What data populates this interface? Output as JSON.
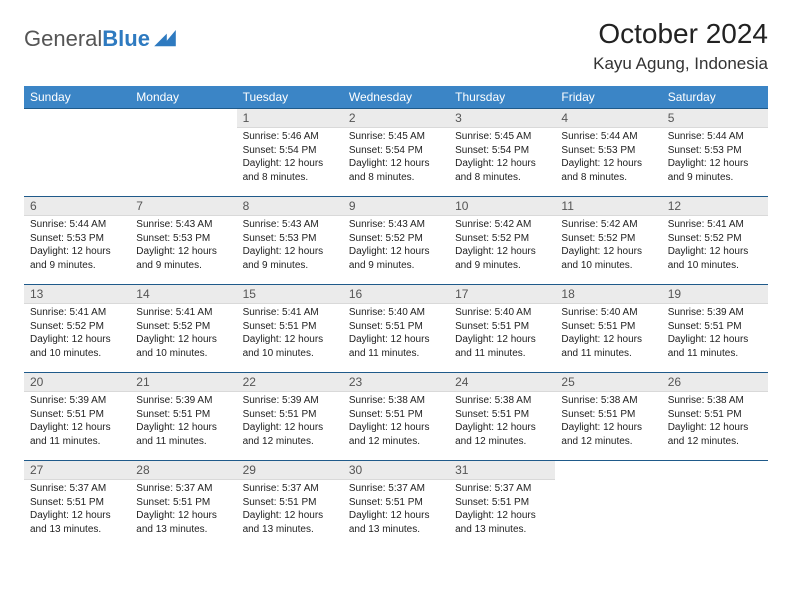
{
  "brand": {
    "part1": "General",
    "part2": "Blue"
  },
  "title": "October 2024",
  "location": "Kayu Agung, Indonesia",
  "colors": {
    "header_bg": "#3b85c6",
    "header_text": "#ffffff",
    "daynum_bg": "#ebebeb",
    "daynum_text": "#555555",
    "row_border": "#1f5a8a",
    "body_text": "#222222",
    "logo_gray": "#555555",
    "logo_blue": "#2e7ac0"
  },
  "weekdays": [
    "Sunday",
    "Monday",
    "Tuesday",
    "Wednesday",
    "Thursday",
    "Friday",
    "Saturday"
  ],
  "weeks": [
    [
      {
        "n": "",
        "empty": true
      },
      {
        "n": "",
        "empty": true
      },
      {
        "n": "1",
        "sr": "5:46 AM",
        "ss": "5:54 PM",
        "dl": "12 hours and 8 minutes."
      },
      {
        "n": "2",
        "sr": "5:45 AM",
        "ss": "5:54 PM",
        "dl": "12 hours and 8 minutes."
      },
      {
        "n": "3",
        "sr": "5:45 AM",
        "ss": "5:54 PM",
        "dl": "12 hours and 8 minutes."
      },
      {
        "n": "4",
        "sr": "5:44 AM",
        "ss": "5:53 PM",
        "dl": "12 hours and 8 minutes."
      },
      {
        "n": "5",
        "sr": "5:44 AM",
        "ss": "5:53 PM",
        "dl": "12 hours and 9 minutes."
      }
    ],
    [
      {
        "n": "6",
        "sr": "5:44 AM",
        "ss": "5:53 PM",
        "dl": "12 hours and 9 minutes."
      },
      {
        "n": "7",
        "sr": "5:43 AM",
        "ss": "5:53 PM",
        "dl": "12 hours and 9 minutes."
      },
      {
        "n": "8",
        "sr": "5:43 AM",
        "ss": "5:53 PM",
        "dl": "12 hours and 9 minutes."
      },
      {
        "n": "9",
        "sr": "5:43 AM",
        "ss": "5:52 PM",
        "dl": "12 hours and 9 minutes."
      },
      {
        "n": "10",
        "sr": "5:42 AM",
        "ss": "5:52 PM",
        "dl": "12 hours and 9 minutes."
      },
      {
        "n": "11",
        "sr": "5:42 AM",
        "ss": "5:52 PM",
        "dl": "12 hours and 10 minutes."
      },
      {
        "n": "12",
        "sr": "5:41 AM",
        "ss": "5:52 PM",
        "dl": "12 hours and 10 minutes."
      }
    ],
    [
      {
        "n": "13",
        "sr": "5:41 AM",
        "ss": "5:52 PM",
        "dl": "12 hours and 10 minutes."
      },
      {
        "n": "14",
        "sr": "5:41 AM",
        "ss": "5:52 PM",
        "dl": "12 hours and 10 minutes."
      },
      {
        "n": "15",
        "sr": "5:41 AM",
        "ss": "5:51 PM",
        "dl": "12 hours and 10 minutes."
      },
      {
        "n": "16",
        "sr": "5:40 AM",
        "ss": "5:51 PM",
        "dl": "12 hours and 11 minutes."
      },
      {
        "n": "17",
        "sr": "5:40 AM",
        "ss": "5:51 PM",
        "dl": "12 hours and 11 minutes."
      },
      {
        "n": "18",
        "sr": "5:40 AM",
        "ss": "5:51 PM",
        "dl": "12 hours and 11 minutes."
      },
      {
        "n": "19",
        "sr": "5:39 AM",
        "ss": "5:51 PM",
        "dl": "12 hours and 11 minutes."
      }
    ],
    [
      {
        "n": "20",
        "sr": "5:39 AM",
        "ss": "5:51 PM",
        "dl": "12 hours and 11 minutes."
      },
      {
        "n": "21",
        "sr": "5:39 AM",
        "ss": "5:51 PM",
        "dl": "12 hours and 11 minutes."
      },
      {
        "n": "22",
        "sr": "5:39 AM",
        "ss": "5:51 PM",
        "dl": "12 hours and 12 minutes."
      },
      {
        "n": "23",
        "sr": "5:38 AM",
        "ss": "5:51 PM",
        "dl": "12 hours and 12 minutes."
      },
      {
        "n": "24",
        "sr": "5:38 AM",
        "ss": "5:51 PM",
        "dl": "12 hours and 12 minutes."
      },
      {
        "n": "25",
        "sr": "5:38 AM",
        "ss": "5:51 PM",
        "dl": "12 hours and 12 minutes."
      },
      {
        "n": "26",
        "sr": "5:38 AM",
        "ss": "5:51 PM",
        "dl": "12 hours and 12 minutes."
      }
    ],
    [
      {
        "n": "27",
        "sr": "5:37 AM",
        "ss": "5:51 PM",
        "dl": "12 hours and 13 minutes."
      },
      {
        "n": "28",
        "sr": "5:37 AM",
        "ss": "5:51 PM",
        "dl": "12 hours and 13 minutes."
      },
      {
        "n": "29",
        "sr": "5:37 AM",
        "ss": "5:51 PM",
        "dl": "12 hours and 13 minutes."
      },
      {
        "n": "30",
        "sr": "5:37 AM",
        "ss": "5:51 PM",
        "dl": "12 hours and 13 minutes."
      },
      {
        "n": "31",
        "sr": "5:37 AM",
        "ss": "5:51 PM",
        "dl": "12 hours and 13 minutes."
      },
      {
        "n": "",
        "empty": true
      },
      {
        "n": "",
        "empty": true
      }
    ]
  ],
  "labels": {
    "sunrise": "Sunrise:",
    "sunset": "Sunset:",
    "daylight": "Daylight:"
  }
}
